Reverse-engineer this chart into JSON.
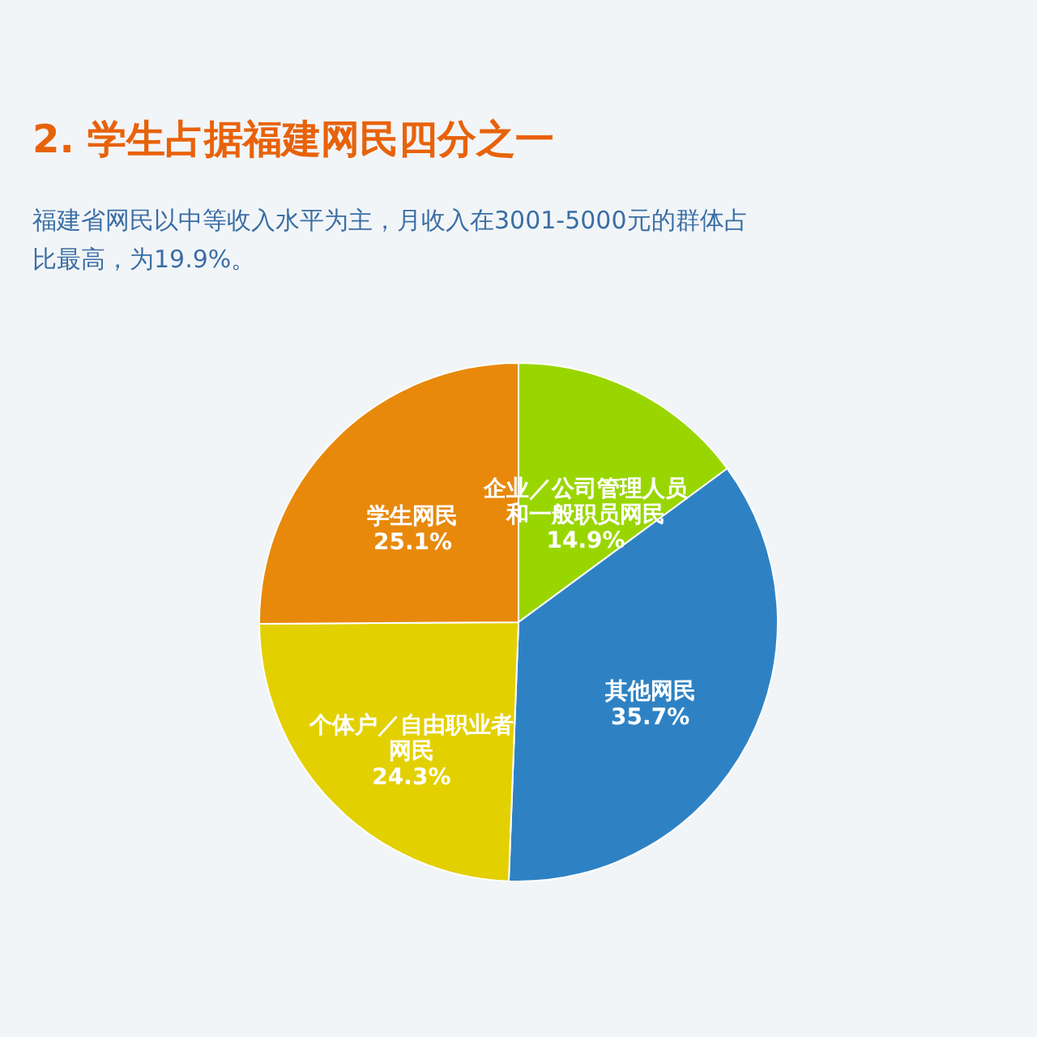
{
  "chart_data": {
    "type": "pie",
    "title": "2. 学生占据福建网民四分之一",
    "subtitle": "福建省网民以中等收入水平为主，月收入在3001-5000元的群体占比最高，为19.9%。",
    "categories": [
      "企业／公司管理人员和一般职员网民",
      "其他网民",
      "个体户／自由职业者网民",
      "学生网民"
    ],
    "values": [
      14.9,
      35.7,
      24.3,
      25.1
    ],
    "value_labels": [
      "14.9%",
      "35.7%",
      "24.3%",
      "25.1%"
    ],
    "colors": [
      "#99d600",
      "#2e82c4",
      "#e3d000",
      "#e8890c"
    ],
    "legend": false
  }
}
